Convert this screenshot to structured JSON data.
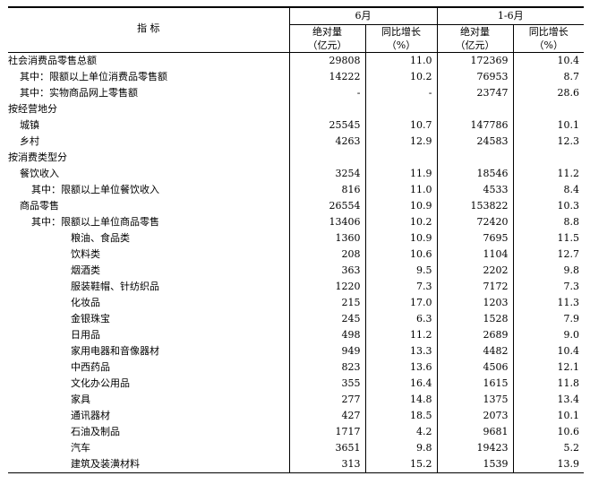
{
  "header": {
    "indicator": "指  标",
    "period_month": "6月",
    "period_ytd": "1-6月",
    "col_abs_line1": "绝对量",
    "col_abs_line2": "（亿元）",
    "col_growth_line1": "同比增长",
    "col_growth_line2": "（%）"
  },
  "rows": [
    {
      "label": "社会消费品零售总额",
      "indent": 0,
      "m_abs": "29808",
      "m_yoy": "11.0",
      "y_abs": "172369",
      "y_yoy": "10.4"
    },
    {
      "label": "其中：限额以上单位消费品零售额",
      "indent": 1,
      "m_abs": "14222",
      "m_yoy": "10.2",
      "y_abs": "76953",
      "y_yoy": "8.7"
    },
    {
      "label": "其中：实物商品网上零售额",
      "indent": 1,
      "m_abs": "-",
      "m_yoy": "-",
      "y_abs": "23747",
      "y_yoy": "28.6"
    },
    {
      "label": "按经营地分",
      "indent": 0,
      "m_abs": "",
      "m_yoy": "",
      "y_abs": "",
      "y_yoy": ""
    },
    {
      "label": "城镇",
      "indent": 1,
      "m_abs": "25545",
      "m_yoy": "10.7",
      "y_abs": "147786",
      "y_yoy": "10.1"
    },
    {
      "label": "乡村",
      "indent": 1,
      "m_abs": "4263",
      "m_yoy": "12.9",
      "y_abs": "24583",
      "y_yoy": "12.3"
    },
    {
      "label": "按消费类型分",
      "indent": 0,
      "m_abs": "",
      "m_yoy": "",
      "y_abs": "",
      "y_yoy": ""
    },
    {
      "label": "餐饮收入",
      "indent": 1,
      "m_abs": "3254",
      "m_yoy": "11.9",
      "y_abs": "18546",
      "y_yoy": "11.2"
    },
    {
      "label": "其中：限额以上单位餐饮收入",
      "indent": 2,
      "m_abs": "816",
      "m_yoy": "11.0",
      "y_abs": "4533",
      "y_yoy": "8.4"
    },
    {
      "label": "商品零售",
      "indent": 1,
      "m_abs": "26554",
      "m_yoy": "10.9",
      "y_abs": "153822",
      "y_yoy": "10.3"
    },
    {
      "label": "其中：限额以上单位商品零售",
      "indent": 2,
      "m_abs": "13406",
      "m_yoy": "10.2",
      "y_abs": "72420",
      "y_yoy": "8.8"
    },
    {
      "label": "粮油、食品类",
      "indent": 3,
      "m_abs": "1360",
      "m_yoy": "10.9",
      "y_abs": "7695",
      "y_yoy": "11.5"
    },
    {
      "label": "饮料类",
      "indent": 3,
      "m_abs": "208",
      "m_yoy": "10.6",
      "y_abs": "1104",
      "y_yoy": "12.7"
    },
    {
      "label": "烟酒类",
      "indent": 3,
      "m_abs": "363",
      "m_yoy": "9.5",
      "y_abs": "2202",
      "y_yoy": "9.8"
    },
    {
      "label": "服装鞋帽、针纺织品",
      "indent": 3,
      "m_abs": "1220",
      "m_yoy": "7.3",
      "y_abs": "7172",
      "y_yoy": "7.3"
    },
    {
      "label": "化妆品",
      "indent": 3,
      "m_abs": "215",
      "m_yoy": "17.0",
      "y_abs": "1203",
      "y_yoy": "11.3"
    },
    {
      "label": "金银珠宝",
      "indent": 3,
      "m_abs": "245",
      "m_yoy": "6.3",
      "y_abs": "1528",
      "y_yoy": "7.9"
    },
    {
      "label": "日用品",
      "indent": 3,
      "m_abs": "498",
      "m_yoy": "11.2",
      "y_abs": "2689",
      "y_yoy": "9.0"
    },
    {
      "label": "家用电器和音像器材",
      "indent": 3,
      "m_abs": "949",
      "m_yoy": "13.3",
      "y_abs": "4482",
      "y_yoy": "10.4"
    },
    {
      "label": "中西药品",
      "indent": 3,
      "m_abs": "823",
      "m_yoy": "13.6",
      "y_abs": "4506",
      "y_yoy": "12.1"
    },
    {
      "label": "文化办公用品",
      "indent": 3,
      "m_abs": "355",
      "m_yoy": "16.4",
      "y_abs": "1615",
      "y_yoy": "11.8"
    },
    {
      "label": "家具",
      "indent": 3,
      "m_abs": "277",
      "m_yoy": "14.8",
      "y_abs": "1375",
      "y_yoy": "13.4"
    },
    {
      "label": "通讯器材",
      "indent": 3,
      "m_abs": "427",
      "m_yoy": "18.5",
      "y_abs": "2073",
      "y_yoy": "10.1"
    },
    {
      "label": "石油及制品",
      "indent": 3,
      "m_abs": "1717",
      "m_yoy": "4.2",
      "y_abs": "9681",
      "y_yoy": "10.6"
    },
    {
      "label": "汽车",
      "indent": 3,
      "m_abs": "3651",
      "m_yoy": "9.8",
      "y_abs": "19423",
      "y_yoy": "5.2"
    },
    {
      "label": "建筑及装潢材料",
      "indent": 3,
      "m_abs": "313",
      "m_yoy": "15.2",
      "y_abs": "1539",
      "y_yoy": "13.9"
    }
  ]
}
